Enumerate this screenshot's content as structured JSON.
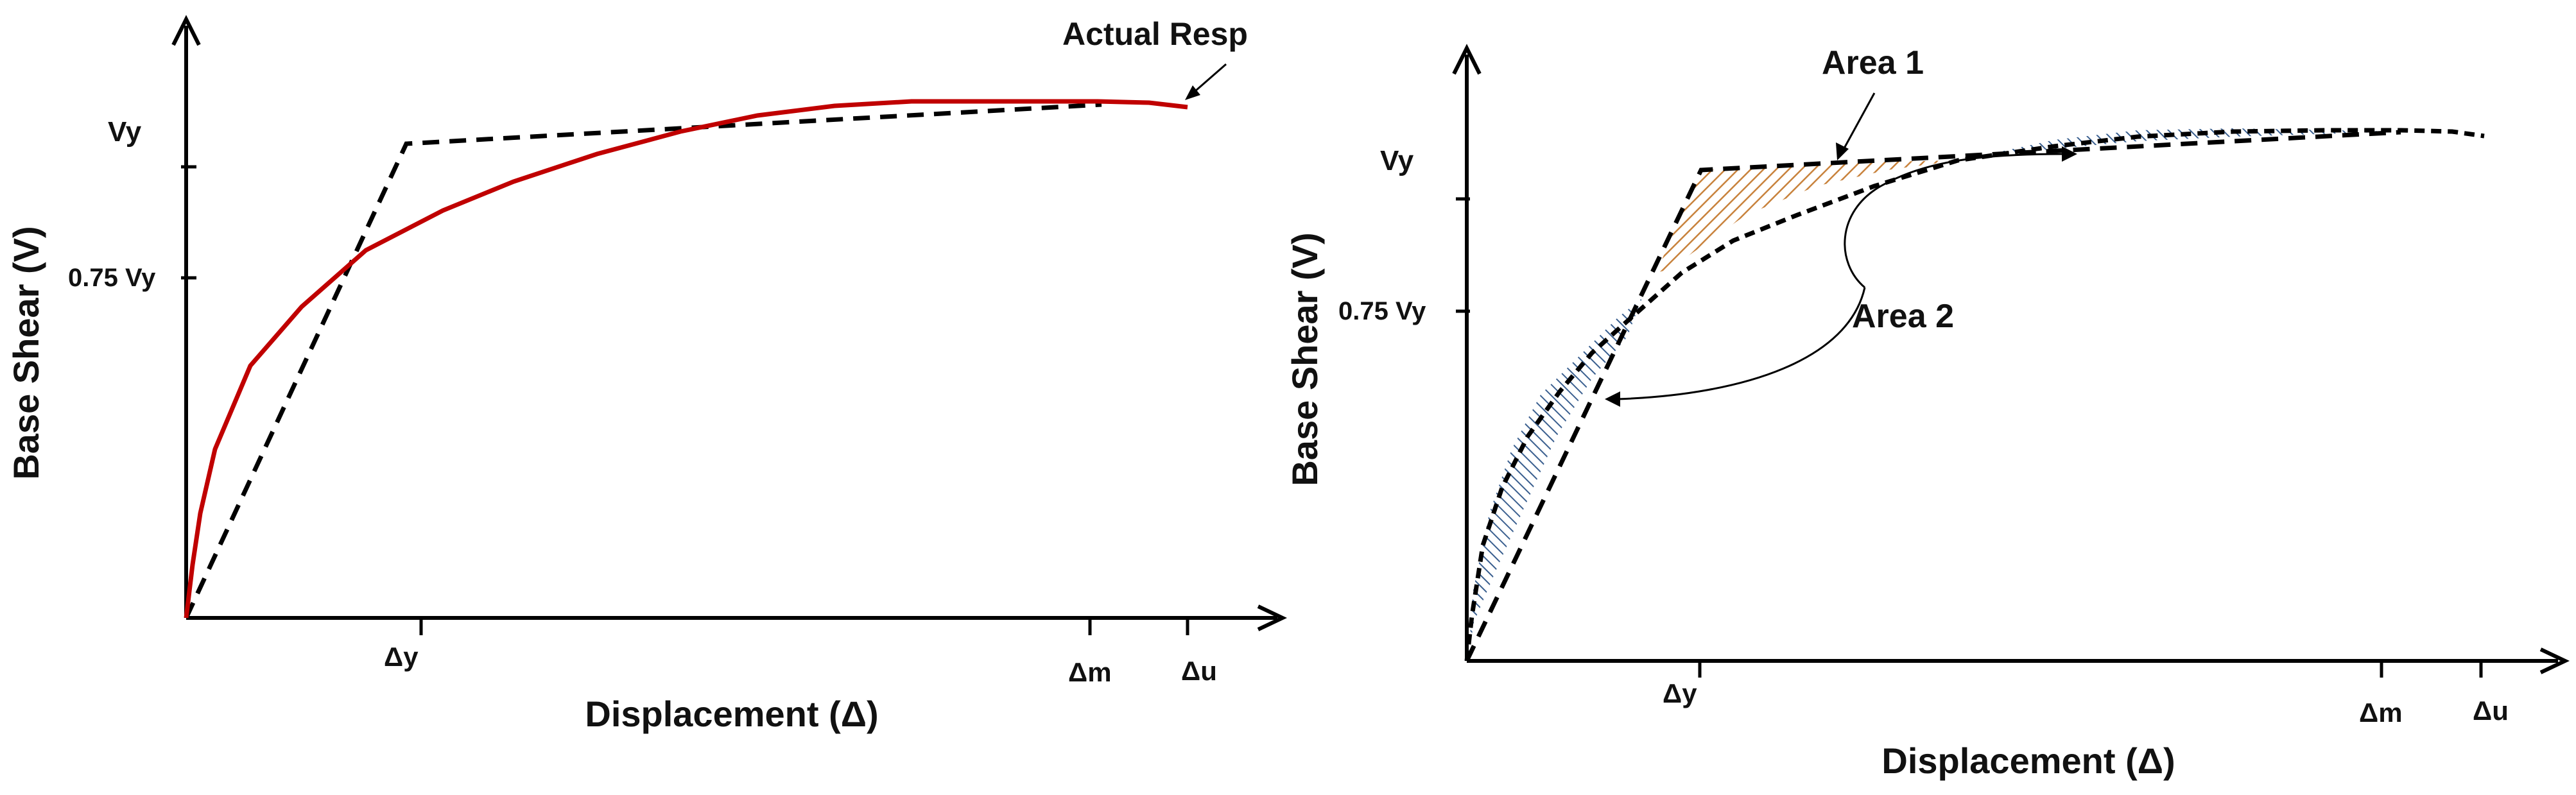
{
  "colors": {
    "actual_response": "#c00000",
    "area1_hatch": "#c8823c",
    "area2_hatch": "#3a5f8f",
    "axis": "#000000"
  },
  "left_plot": {
    "ylabel": "Base Shear (V)",
    "xlabel": "Displacement (Δ)",
    "y_ticks": [
      "Vy",
      "0.75 Vy"
    ],
    "x_ticks": [
      "Δy",
      "Δm",
      "Δu"
    ],
    "annotation": "Actual Resp",
    "curves": [
      "actual response",
      "idealized bilinear"
    ]
  },
  "right_plot": {
    "ylabel": "Base Shear (V)",
    "xlabel": "Displacement (Δ)",
    "y_ticks": [
      "Vy",
      "0.75 Vy"
    ],
    "x_ticks": [
      "Δy",
      "Δm",
      "Δu"
    ],
    "area1_label": "Area 1",
    "area2_label": "Area 2"
  }
}
